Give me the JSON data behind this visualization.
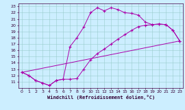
{
  "title": "",
  "xlabel": "Windchill (Refroidissement éolien,°C)",
  "bg_color": "#cceeff",
  "line_color": "#aa00aa",
  "xlim": [
    -0.5,
    23.5
  ],
  "ylim": [
    10,
    23.5
  ],
  "xticks": [
    0,
    1,
    2,
    3,
    4,
    5,
    6,
    7,
    8,
    9,
    10,
    11,
    12,
    13,
    14,
    15,
    16,
    17,
    18,
    19,
    20,
    21,
    22,
    23
  ],
  "yticks": [
    11,
    12,
    13,
    14,
    15,
    16,
    17,
    18,
    19,
    20,
    21,
    22,
    23
  ],
  "line1_x": [
    0,
    1,
    2,
    3,
    4,
    5,
    6,
    7,
    8,
    9,
    10,
    11,
    12,
    13,
    14,
    15,
    16,
    17,
    18,
    19,
    20,
    21,
    22,
    23
  ],
  "line1_y": [
    12.5,
    12.0,
    11.2,
    10.8,
    10.4,
    11.2,
    11.4,
    16.6,
    18.0,
    19.7,
    22.0,
    22.8,
    22.3,
    22.8,
    22.5,
    22.0,
    21.9,
    21.6,
    20.5,
    20.1,
    20.2,
    20.1,
    19.2,
    17.5
  ],
  "line2_x": [
    0,
    1,
    2,
    3,
    4,
    5,
    6,
    7,
    8,
    9,
    10,
    11,
    12,
    13,
    14,
    15,
    16,
    17,
    18,
    19,
    20,
    21,
    22,
    23
  ],
  "line2_y": [
    12.5,
    12.0,
    11.2,
    10.8,
    10.4,
    11.2,
    11.4,
    11.4,
    11.5,
    13.0,
    14.5,
    15.5,
    16.2,
    17.0,
    17.8,
    18.5,
    19.2,
    19.8,
    20.0,
    20.1,
    20.2,
    20.1,
    19.2,
    17.5
  ],
  "line3_x": [
    0,
    23
  ],
  "line3_y": [
    12.5,
    17.5
  ],
  "grid_color": "#99cccc",
  "markersize": 2.5
}
